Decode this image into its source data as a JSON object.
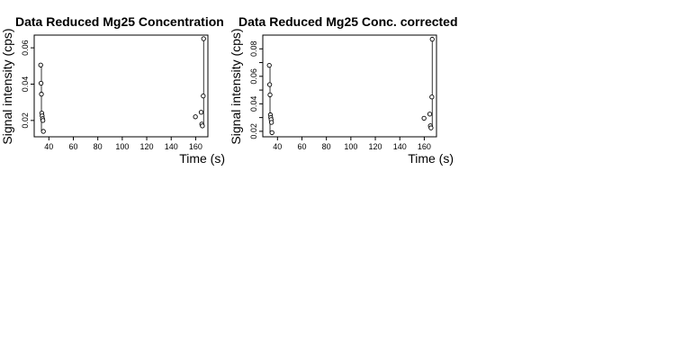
{
  "colors": {
    "background": "#ffffff",
    "ink": "#000000"
  },
  "chart_data": [
    {
      "type": "scatter",
      "title": "Data Reduced Mg25 Concentration",
      "xlabel": "Time (s)",
      "ylabel": "Signal intensity (cps)",
      "xlim": [
        28,
        170
      ],
      "ylim": [
        0.011,
        0.067
      ],
      "xticks": [
        40,
        60,
        80,
        100,
        120,
        140,
        160
      ],
      "yticks": [
        0.02,
        0.04,
        0.06
      ],
      "ytick_labels": [
        "0.02",
        "0.04",
        "0.06"
      ],
      "grid": false,
      "legend": "none",
      "points": [
        {
          "x": 33.3,
          "y": 0.0505
        },
        {
          "x": 33.6,
          "y": 0.0405
        },
        {
          "x": 33.9,
          "y": 0.0345
        },
        {
          "x": 34.2,
          "y": 0.024
        },
        {
          "x": 34.5,
          "y": 0.0225
        },
        {
          "x": 34.8,
          "y": 0.021
        },
        {
          "x": 35.1,
          "y": 0.02
        },
        {
          "x": 35.5,
          "y": 0.014
        },
        {
          "x": 159.8,
          "y": 0.022
        },
        {
          "x": 164.5,
          "y": 0.0245
        },
        {
          "x": 165.0,
          "y": 0.018
        },
        {
          "x": 165.5,
          "y": 0.017
        },
        {
          "x": 166.2,
          "y": 0.0335
        },
        {
          "x": 166.5,
          "y": 0.065
        }
      ],
      "ranges": [
        {
          "x": 33.9,
          "y_from": 0.0505,
          "y_to": 0.014
        },
        {
          "x": 166.5,
          "y_from": 0.065,
          "y_to": 0.017
        }
      ]
    },
    {
      "type": "scatter",
      "title": "Data Reduced Mg25 Conc. corrected",
      "xlabel": "Time (s)",
      "ylabel": "Signal intensity (cps)",
      "xlim": [
        28,
        170
      ],
      "ylim": [
        0.016,
        0.09
      ],
      "xticks": [
        40,
        60,
        80,
        100,
        120,
        140,
        160
      ],
      "yticks": [
        0.02,
        0.03,
        0.04,
        0.05,
        0.06,
        0.07,
        0.08
      ],
      "ytick_labels": [
        "0.02",
        "",
        "0.04",
        "",
        "0.06",
        "",
        "0.08"
      ],
      "grid": false,
      "legend": "none",
      "points": [
        {
          "x": 33.3,
          "y": 0.068
        },
        {
          "x": 33.6,
          "y": 0.054
        },
        {
          "x": 33.9,
          "y": 0.0465
        },
        {
          "x": 34.2,
          "y": 0.032
        },
        {
          "x": 34.5,
          "y": 0.03
        },
        {
          "x": 34.8,
          "y": 0.0285
        },
        {
          "x": 35.1,
          "y": 0.0265
        },
        {
          "x": 35.5,
          "y": 0.019
        },
        {
          "x": 159.8,
          "y": 0.0295
        },
        {
          "x": 164.5,
          "y": 0.0325
        },
        {
          "x": 165.0,
          "y": 0.024
        },
        {
          "x": 165.5,
          "y": 0.0225
        },
        {
          "x": 166.2,
          "y": 0.045
        },
        {
          "x": 166.5,
          "y": 0.087
        }
      ],
      "ranges": [
        {
          "x": 33.9,
          "y_from": 0.068,
          "y_to": 0.019
        },
        {
          "x": 166.5,
          "y_from": 0.087,
          "y_to": 0.0225
        }
      ]
    }
  ]
}
